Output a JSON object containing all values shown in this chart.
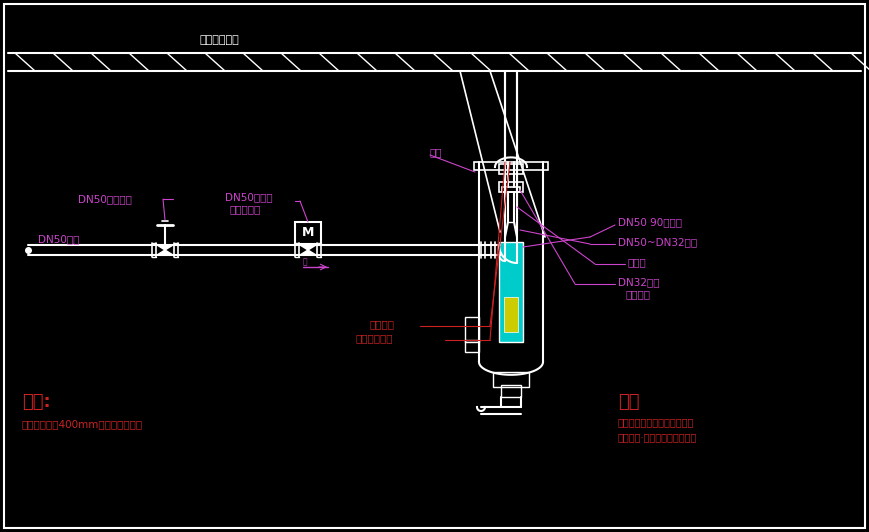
{
  "bg_color": "#000000",
  "line_color": "#ffffff",
  "magenta": "#cc44cc",
  "red": "#cc2222",
  "cyan": "#00cccc",
  "yellow": "#cccc00",
  "title_text": "楼板或承重架",
  "label_dn50_shoudonglv": "DN50手动蝶阀",
  "label_dn50_diandong": "DN50电磁阀",
  "label_shuipinganzhang": "需水平安装",
  "label_dn50_zhiguan": "DN50支管",
  "label_zhijia": "支架",
  "label_dn50_90": "DN50 90度弯头",
  "label_dn50_dn32": "DN50~DN32变径",
  "label_duanliguan": "短立管",
  "label_dn32_falanpan": "DN32法兰",
  "label_baochisuiping": "保持水平",
  "label_miehuo": "灭火装置",
  "label_anzhangqingcan": "安装前请技码",
  "note_left_title": "注意:",
  "note_left_text": "灭火装置周围400mm内不能有障碍物",
  "note_right_title": "注：",
  "note_right_line1": "灭火装置调节学搭接轴固定置",
  "note_right_line2": "以免损坏·规范适用（连接管）"
}
